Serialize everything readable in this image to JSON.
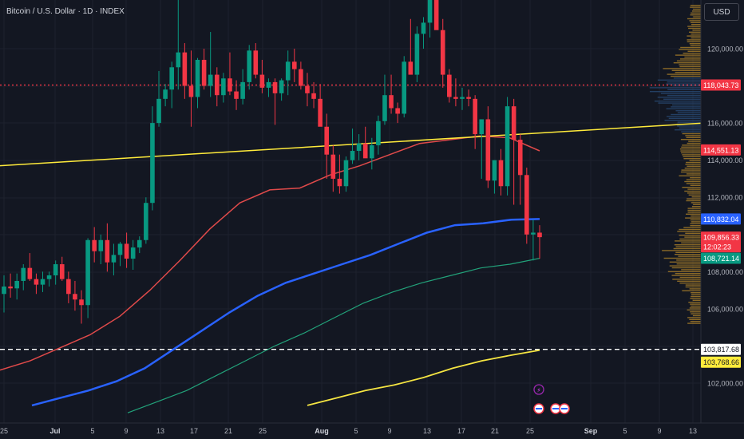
{
  "header": {
    "title": "Bitcoin / U.S. Dollar · 1D · INDEX",
    "currency_label": "USD"
  },
  "colors": {
    "background": "#131722",
    "grid": "#1e222d",
    "candle_up": "#089981",
    "candle_down": "#f23645",
    "ma_red": "#e04a4a",
    "ma_blue": "#2962ff",
    "ma_green": "#22a27a",
    "ma_yellow": "#f5e542",
    "trendline": "#ffeb3b",
    "volume_profile_orange": "#b3852a",
    "volume_profile_blue": "#2a4d7a"
  },
  "chart_data": {
    "type": "candlestick",
    "symbol": "Bitcoin / U.S. Dollar",
    "interval": "1D",
    "y_ticks": [
      "120,000.00",
      "116,000.00",
      "114,000.00",
      "112,000.00",
      "108,000.00",
      "106,000.00",
      "102,000.00"
    ],
    "x_ticks": [
      "25",
      "Jul",
      "5",
      "9",
      "13",
      "17",
      "21",
      "25",
      "Aug",
      "5",
      "9",
      "13",
      "17",
      "21",
      "25",
      "Sep",
      "5",
      "9",
      "13"
    ],
    "candles_ohlc": [
      [
        106800,
        107800,
        105800,
        107200
      ],
      [
        107200,
        107900,
        106600,
        107100
      ],
      [
        107100,
        107900,
        106500,
        107500
      ],
      [
        107500,
        108400,
        107000,
        108200
      ],
      [
        108200,
        109000,
        107500,
        107600
      ],
      [
        107600,
        107900,
        106800,
        107300
      ],
      [
        107300,
        108000,
        106900,
        107600
      ],
      [
        107600,
        108000,
        107200,
        107800
      ],
      [
        107800,
        108600,
        107300,
        108400
      ],
      [
        108400,
        108800,
        107500,
        107600
      ],
      [
        107600,
        108000,
        106300,
        106800
      ],
      [
        106800,
        107500,
        105900,
        106500
      ],
      [
        106500,
        107000,
        105200,
        106200
      ],
      [
        106200,
        109800,
        105500,
        109700
      ],
      [
        109700,
        110400,
        108500,
        109100
      ],
      [
        109100,
        110000,
        108400,
        109700
      ],
      [
        109700,
        110600,
        108000,
        108500
      ],
      [
        108500,
        109500,
        107800,
        108900
      ],
      [
        108900,
        109600,
        108300,
        109500
      ],
      [
        109500,
        110100,
        108200,
        108700
      ],
      [
        108700,
        109700,
        108100,
        109300
      ],
      [
        109300,
        109900,
        109000,
        109700
      ],
      [
        109700,
        112000,
        109500,
        111700
      ],
      [
        111700,
        116900,
        111300,
        116000
      ],
      [
        116000,
        118800,
        115800,
        117300
      ],
      [
        117300,
        118100,
        116900,
        117800
      ],
      [
        117800,
        119300,
        116800,
        119000
      ],
      [
        119000,
        123200,
        117800,
        119800
      ],
      [
        119800,
        120300,
        117300,
        118000
      ],
      [
        118000,
        119900,
        115800,
        117400
      ],
      [
        117400,
        119500,
        116800,
        119400
      ],
      [
        119400,
        120000,
        117800,
        118000
      ],
      [
        118000,
        120900,
        117400,
        118600
      ],
      [
        118600,
        119000,
        116900,
        117500
      ],
      [
        117500,
        118700,
        117100,
        118400
      ],
      [
        118400,
        119800,
        117500,
        117700
      ],
      [
        117700,
        118300,
        116700,
        117300
      ],
      [
        117300,
        118900,
        117000,
        118200
      ],
      [
        118200,
        120200,
        117800,
        119900
      ],
      [
        119900,
        120300,
        118400,
        118600
      ],
      [
        118600,
        119400,
        117600,
        117900
      ],
      [
        117900,
        118400,
        117400,
        118200
      ],
      [
        118200,
        118400,
        115900,
        117600
      ],
      [
        117600,
        118400,
        117200,
        118300
      ],
      [
        118300,
        119900,
        117500,
        119300
      ],
      [
        119300,
        120000,
        118200,
        118900
      ],
      [
        118900,
        119300,
        117800,
        118000
      ],
      [
        118000,
        118700,
        116900,
        117600
      ],
      [
        117600,
        118200,
        116800,
        117300
      ],
      [
        117300,
        118100,
        116500,
        115800
      ],
      [
        115800,
        116500,
        113000,
        114300
      ],
      [
        114300,
        114800,
        112300,
        113000
      ],
      [
        113000,
        114300,
        112200,
        112600
      ],
      [
        112600,
        114200,
        112300,
        114000
      ],
      [
        114000,
        115700,
        113800,
        114500
      ],
      [
        114500,
        115400,
        114000,
        114900
      ],
      [
        114900,
        115800,
        114300,
        114100
      ],
      [
        114100,
        115200,
        113500,
        114800
      ],
      [
        114800,
        116400,
        114300,
        116100
      ],
      [
        116100,
        118600,
        115900,
        117500
      ],
      [
        117500,
        118600,
        116500,
        116800
      ],
      [
        116800,
        117100,
        116000,
        116500
      ],
      [
        116500,
        119600,
        116300,
        119300
      ],
      [
        119300,
        121600,
        118800,
        118600
      ],
      [
        118600,
        121200,
        118200,
        120800
      ],
      [
        120800,
        121700,
        120000,
        121400
      ],
      [
        121400,
        124100,
        120600,
        123300
      ],
      [
        123300,
        124400,
        121200,
        121000
      ],
      [
        121000,
        121600,
        117900,
        118600
      ],
      [
        118600,
        118900,
        117100,
        117400
      ],
      [
        117400,
        118400,
        116900,
        117300
      ],
      [
        117300,
        117900,
        116700,
        117400
      ],
      [
        117400,
        117800,
        116900,
        117300
      ],
      [
        117300,
        117500,
        114600,
        115400
      ],
      [
        115400,
        116200,
        113000,
        116200
      ],
      [
        116200,
        116900,
        112500,
        112900
      ],
      [
        112900,
        114000,
        112200,
        114000
      ],
      [
        114000,
        114600,
        112100,
        112600
      ],
      [
        112600,
        117400,
        112100,
        116900
      ],
      [
        116900,
        117300,
        111600,
        115100
      ],
      [
        115100,
        115400,
        111600,
        113200
      ],
      [
        113200,
        113600,
        109500,
        110000
      ],
      [
        110000,
        110800,
        108600,
        110100
      ],
      [
        110100,
        110500,
        108700,
        109856
      ]
    ],
    "ma_series": [
      {
        "color": "red",
        "values": [
          102700,
          103200,
          103900,
          104600,
          105600,
          107000,
          108600,
          110300,
          111700,
          112400,
          112500,
          113200,
          113700,
          114300,
          114900,
          115100,
          115300,
          115200,
          114500
        ]
      },
      {
        "color": "blue",
        "values": [
          100800,
          101200,
          101600,
          102100,
          102800,
          103800,
          104800,
          105800,
          106700,
          107400,
          107900,
          108400,
          108900,
          109500,
          110100,
          110500,
          110600,
          110800,
          110832
        ]
      },
      {
        "color": "green",
        "values": [
          100400,
          101000,
          101600,
          102400,
          103200,
          104000,
          104700,
          105500,
          106300,
          106900,
          107400,
          107800,
          108200,
          108400,
          108721
        ]
      },
      {
        "color": "yellow",
        "values": [
          100800,
          101200,
          101600,
          101900,
          102300,
          102800,
          103200,
          103500,
          103769
        ]
      }
    ],
    "trendline": {
      "from": 113700,
      "to": 116000
    },
    "horizontal_lines": [
      {
        "style": "dotted",
        "color": "red",
        "value": 118043.73
      },
      {
        "style": "dashed",
        "color": "white",
        "value": 103817.68
      }
    ],
    "price_labels": [
      {
        "text": "118,043.73",
        "bg": "#f23645",
        "fg": "#ffffff",
        "value": 118043.73
      },
      {
        "text": "114,551.13",
        "bg": "#f23645",
        "fg": "#ffffff",
        "value": 114551.13
      },
      {
        "text": "110,832.04",
        "bg": "#2962ff",
        "fg": "#ffffff",
        "value": 110832.04
      },
      {
        "text": "109,856.33",
        "bg": "#f23645",
        "fg": "#ffffff",
        "value": 109856.33
      },
      {
        "text": "12:02:23",
        "bg": "#f23645",
        "fg": "#ffffff",
        "value": 109500
      },
      {
        "text": "108,721.14",
        "bg": "#089981",
        "fg": "#ffffff",
        "value": 108721.14
      },
      {
        "text": "103,817.68",
        "bg": "#ffffff",
        "fg": "#131722",
        "value": 103817.68
      },
      {
        "text": "103,768.66",
        "bg": "#ffeb3b",
        "fg": "#131722",
        "value": 103768.66
      }
    ]
  }
}
